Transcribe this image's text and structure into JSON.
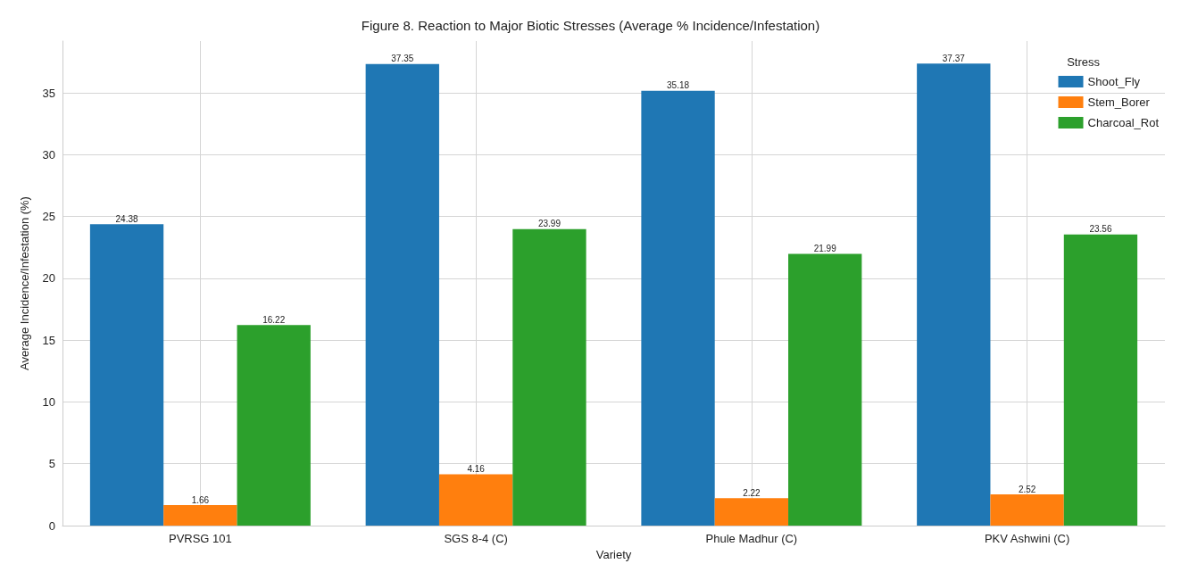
{
  "chart_data": {
    "type": "bar",
    "title": "Figure 8. Reaction to Major Biotic Stresses (Average % Incidence/Infestation)",
    "xlabel": "Variety",
    "ylabel": "Average Incidence/Infestation (%)",
    "legend_title": "Stress",
    "categories": [
      "PVRSG 101",
      "SGS 8-4 (C)",
      "Phule Madhur (C)",
      "PKV Ashwini (C)"
    ],
    "series": [
      {
        "name": "Shoot_Fly",
        "color": "#1f77b4",
        "values": [
          24.38,
          37.35,
          35.18,
          37.37
        ]
      },
      {
        "name": "Stem_Borer",
        "color": "#ff7f0e",
        "values": [
          1.66,
          4.16,
          2.22,
          2.52
        ]
      },
      {
        "name": "Charcoal_Rot",
        "color": "#2ca02c",
        "values": [
          16.22,
          23.99,
          21.99,
          23.56
        ]
      }
    ],
    "ylim": [
      0,
      39.2
    ],
    "yticks": [
      0,
      5,
      10,
      15,
      20,
      25,
      30,
      35
    ],
    "grid": true,
    "legend": "top right",
    "data_labels": true
  }
}
